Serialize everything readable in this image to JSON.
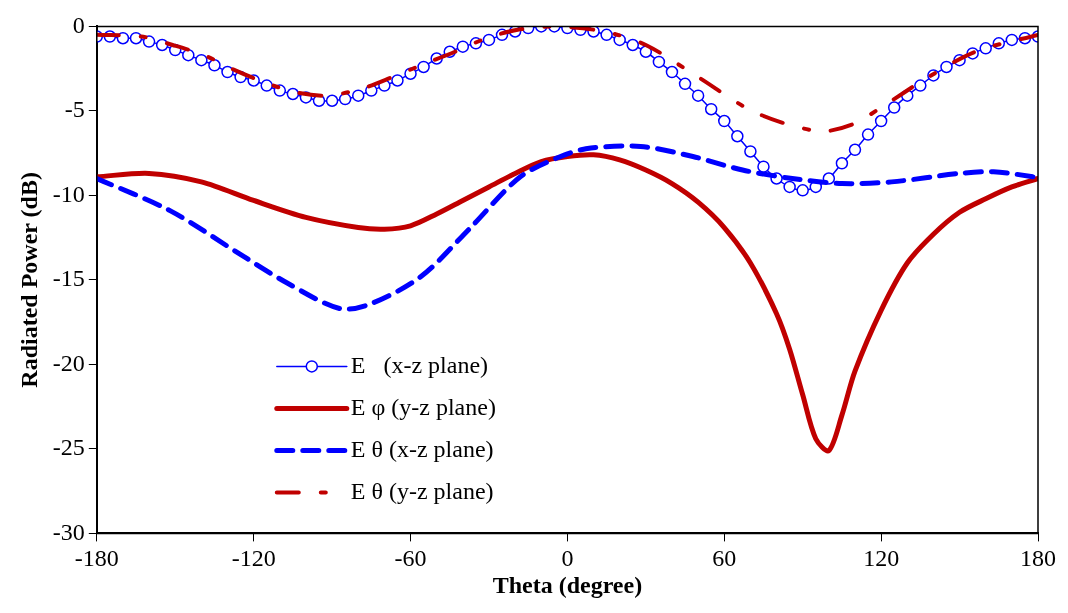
{
  "chart_data": {
    "type": "line",
    "xlabel": "Theta (degree)",
    "ylabel": "Radiated Power (dB)",
    "xlim": [
      -180,
      180
    ],
    "xticks": [
      -180,
      -120,
      -60,
      0,
      60,
      120,
      180
    ],
    "ylim": [
      -30,
      0
    ],
    "yticks": [
      -30,
      -25,
      -20,
      -15,
      -10,
      -5,
      0
    ],
    "grid": false,
    "legend": "bottom left",
    "series": [
      {
        "name": "E   (x-z plane)",
        "color": "#0000ff",
        "marker": "circle",
        "line_style": "solid",
        "x": [
          -180,
          -175,
          -170,
          -165,
          -160,
          -155,
          -150,
          -145,
          -140,
          -135,
          -130,
          -125,
          -120,
          -115,
          -110,
          -105,
          -100,
          -95,
          -90,
          -85,
          -80,
          -75,
          -70,
          -65,
          -60,
          -55,
          -50,
          -45,
          -40,
          -35,
          -30,
          -25,
          -20,
          -15,
          -10,
          -5,
          0,
          5,
          10,
          15,
          20,
          25,
          30,
          35,
          40,
          45,
          50,
          55,
          60,
          65,
          70,
          75,
          80,
          85,
          90,
          95,
          100,
          105,
          110,
          115,
          120,
          125,
          130,
          135,
          140,
          145,
          150,
          155,
          160,
          165,
          170,
          175,
          180
        ],
        "values": [
          -0.6,
          -0.6,
          -0.7,
          -0.7,
          -0.9,
          -1.1,
          -1.4,
          -1.7,
          -2.0,
          -2.3,
          -2.7,
          -3.0,
          -3.2,
          -3.5,
          -3.8,
          -4.0,
          -4.2,
          -4.4,
          -4.4,
          -4.3,
          -4.1,
          -3.8,
          -3.5,
          -3.2,
          -2.8,
          -2.4,
          -1.9,
          -1.5,
          -1.2,
          -1.0,
          -0.8,
          -0.5,
          -0.3,
          -0.1,
          0,
          0,
          -0.1,
          -0.2,
          -0.3,
          -0.5,
          -0.8,
          -1.1,
          -1.5,
          -2.1,
          -2.7,
          -3.4,
          -4.1,
          -4.9,
          -5.6,
          -6.5,
          -7.4,
          -8.3,
          -9.0,
          -9.5,
          -9.7,
          -9.5,
          -9.0,
          -8.1,
          -7.3,
          -6.4,
          -5.6,
          -4.8,
          -4.1,
          -3.5,
          -2.9,
          -2.4,
          -2.0,
          -1.6,
          -1.3,
          -1.0,
          -0.8,
          -0.7,
          -0.6
        ]
      },
      {
        "name": "E φ (y-z plane)",
        "color": "#c00000",
        "marker": "none",
        "line_style": "solid",
        "x": [
          -180,
          -160,
          -140,
          -120,
          -100,
          -80,
          -70,
          -60,
          -50,
          -40,
          -30,
          -20,
          -10,
          0,
          10,
          20,
          30,
          40,
          50,
          60,
          70,
          80,
          85,
          90,
          95,
          100,
          105,
          110,
          120,
          130,
          140,
          150,
          160,
          170,
          180
        ],
        "values": [
          -8.9,
          -8.7,
          -9.2,
          -10.3,
          -11.3,
          -11.9,
          -12.0,
          -11.8,
          -11.1,
          -10.3,
          -9.5,
          -8.7,
          -8.0,
          -7.7,
          -7.6,
          -7.9,
          -8.5,
          -9.3,
          -10.4,
          -11.9,
          -14.0,
          -17.0,
          -19.1,
          -21.8,
          -24.4,
          -25.1,
          -23.0,
          -20.4,
          -16.8,
          -14.0,
          -12.3,
          -11.0,
          -10.2,
          -9.5,
          -9.0
        ]
      },
      {
        "name": "E θ (x-z plane)",
        "color": "#0000ff",
        "marker": "none",
        "line_style": "dashed",
        "x": [
          -180,
          -152,
          -126,
          -107,
          -87,
          -75,
          -56,
          -37,
          -18,
          -1,
          9,
          28,
          48,
          67,
          86,
          105,
          124,
          150,
          163,
          178,
          180
        ],
        "values": [
          -9.0,
          -10.9,
          -13.4,
          -15.2,
          -16.7,
          -16.4,
          -14.8,
          -11.9,
          -8.9,
          -7.6,
          -7.2,
          -7.1,
          -7.7,
          -8.5,
          -9.0,
          -9.3,
          -9.2,
          -8.7,
          -8.6,
          -8.9,
          -9.0
        ]
      },
      {
        "name": "E θ (y-z plane)",
        "color": "#c00000",
        "marker": "none",
        "line_style": "dashdot",
        "x": [
          -180,
          -163,
          -151,
          -139,
          -127,
          -116,
          -104,
          -92,
          -79,
          -67,
          -56,
          -43,
          -31,
          -19,
          -5,
          14,
          30,
          50,
          72,
          96,
          109,
          121,
          137,
          156,
          180
        ],
        "values": [
          -0.5,
          -0.6,
          -1.1,
          -1.7,
          -2.6,
          -3.3,
          -3.9,
          -4.1,
          -3.7,
          -3.0,
          -2.3,
          -1.5,
          -0.7,
          -0.2,
          0,
          -0.3,
          -1.1,
          -3.0,
          -5.1,
          -6.2,
          -5.8,
          -4.7,
          -3.1,
          -1.5,
          -0.5
        ]
      }
    ]
  }
}
